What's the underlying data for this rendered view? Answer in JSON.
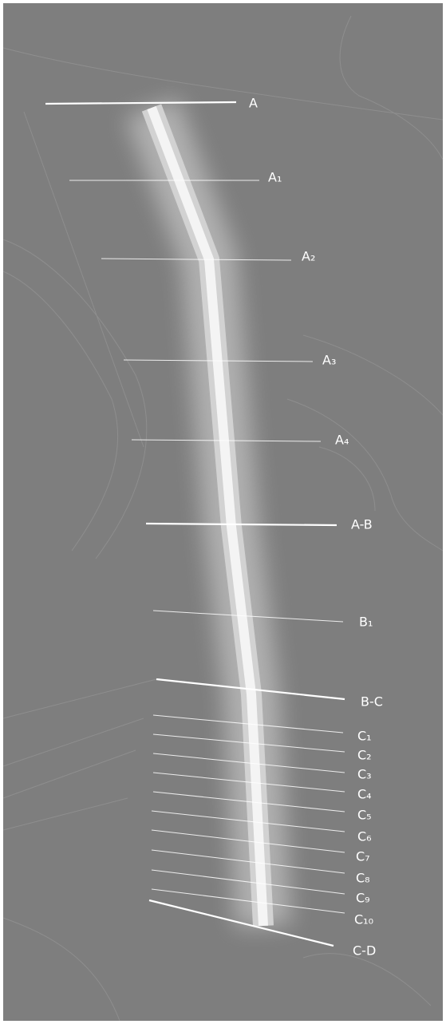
{
  "sections": [
    {
      "label": "A"
    },
    {
      "label": "A₁"
    },
    {
      "label": "A₂"
    },
    {
      "label": "A₃"
    },
    {
      "label": "A₄"
    },
    {
      "label": "A-B"
    },
    {
      "label": "B₁"
    },
    {
      "label": "B-C"
    },
    {
      "label": "C₁"
    },
    {
      "label": "C₂"
    },
    {
      "label": "C₃"
    },
    {
      "label": "C₄"
    },
    {
      "label": "C₅"
    },
    {
      "label": "C₆"
    },
    {
      "label": "C₇"
    },
    {
      "label": "C₈"
    },
    {
      "label": "C₉"
    },
    {
      "label": "C₁₀"
    },
    {
      "label": "C-D"
    }
  ]
}
